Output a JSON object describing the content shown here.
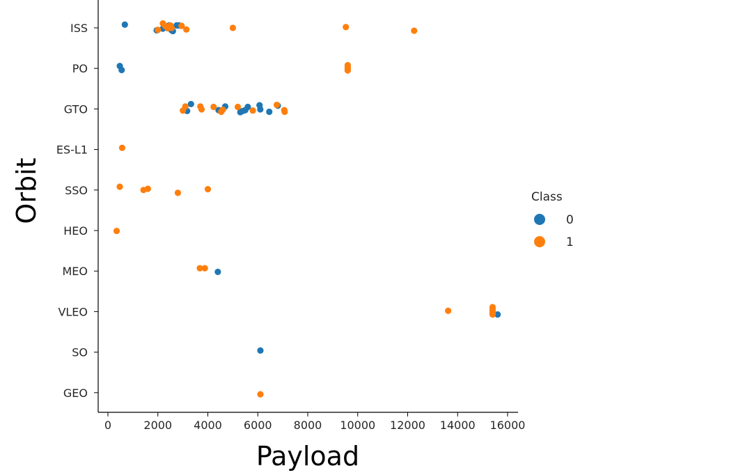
{
  "chart_data": {
    "type": "scatter",
    "title": "",
    "xlabel": "Payload",
    "ylabel": "Orbit",
    "xlim": [
      -400,
      16400
    ],
    "xticks": [
      0,
      2000,
      4000,
      6000,
      8000,
      10000,
      12000,
      14000,
      16000
    ],
    "categories": [
      "ISS",
      "PO",
      "GTO",
      "ES-L1",
      "SSO",
      "HEO",
      "MEO",
      "VLEO",
      "SO",
      "GEO"
    ],
    "grid": false,
    "legend": {
      "title": "Class",
      "placement": "right"
    },
    "series": [
      {
        "name": "0",
        "color": "#1f77b4",
        "points": [
          {
            "x": 677,
            "y": "ISS",
            "jitter": -0.08
          },
          {
            "x": 1952,
            "y": "ISS",
            "jitter": 0.06
          },
          {
            "x": 2200,
            "y": "ISS",
            "jitter": 0.02
          },
          {
            "x": 2450,
            "y": "ISS",
            "jitter": -0.06
          },
          {
            "x": 2600,
            "y": "ISS",
            "jitter": 0.08
          },
          {
            "x": 2750,
            "y": "ISS",
            "jitter": -0.06
          },
          {
            "x": 2850,
            "y": "ISS",
            "jitter": -0.06
          },
          {
            "x": 2550,
            "y": "ISS",
            "jitter": 0.06
          },
          {
            "x": 475,
            "y": "PO",
            "jitter": -0.06
          },
          {
            "x": 550,
            "y": "PO",
            "jitter": 0.04
          },
          {
            "x": 3170,
            "y": "GTO",
            "jitter": 0.05
          },
          {
            "x": 3325,
            "y": "GTO",
            "jitter": -0.12
          },
          {
            "x": 4430,
            "y": "GTO",
            "jitter": 0.03
          },
          {
            "x": 4696,
            "y": "GTO",
            "jitter": -0.06
          },
          {
            "x": 5300,
            "y": "GTO",
            "jitter": 0.08
          },
          {
            "x": 5400,
            "y": "GTO",
            "jitter": 0.05
          },
          {
            "x": 5500,
            "y": "GTO",
            "jitter": 0.03
          },
          {
            "x": 5600,
            "y": "GTO",
            "jitter": -0.05
          },
          {
            "x": 6070,
            "y": "GTO",
            "jitter": -0.09
          },
          {
            "x": 6100,
            "y": "GTO",
            "jitter": 0.01
          },
          {
            "x": 6460,
            "y": "GTO",
            "jitter": 0.07
          },
          {
            "x": 6800,
            "y": "GTO",
            "jitter": -0.08
          },
          {
            "x": 4400,
            "y": "MEO",
            "jitter": 0.02
          },
          {
            "x": 15600,
            "y": "VLEO",
            "jitter": 0.07
          },
          {
            "x": 6104,
            "y": "SO",
            "jitter": -0.04
          }
        ]
      },
      {
        "name": "1",
        "color": "#ff7f0e",
        "points": [
          {
            "x": 2000,
            "y": "ISS",
            "jitter": 0.05
          },
          {
            "x": 2200,
            "y": "ISS",
            "jitter": -0.11
          },
          {
            "x": 2300,
            "y": "ISS",
            "jitter": -0.04
          },
          {
            "x": 2400,
            "y": "ISS",
            "jitter": 0.01
          },
          {
            "x": 2500,
            "y": "ISS",
            "jitter": -0.06
          },
          {
            "x": 2550,
            "y": "ISS",
            "jitter": 0.0
          },
          {
            "x": 2950,
            "y": "ISS",
            "jitter": -0.05
          },
          {
            "x": 3140,
            "y": "ISS",
            "jitter": 0.04
          },
          {
            "x": 5000,
            "y": "ISS",
            "jitter": 0.0
          },
          {
            "x": 9525,
            "y": "ISS",
            "jitter": -0.02
          },
          {
            "x": 12259,
            "y": "ISS",
            "jitter": 0.07
          },
          {
            "x": 9600,
            "y": "PO",
            "jitter": -0.08
          },
          {
            "x": 9600,
            "y": "PO",
            "jitter": -0.03
          },
          {
            "x": 9600,
            "y": "PO",
            "jitter": 0.0
          },
          {
            "x": 9600,
            "y": "PO",
            "jitter": 0.05
          },
          {
            "x": 3000,
            "y": "GTO",
            "jitter": 0.04
          },
          {
            "x": 3100,
            "y": "GTO",
            "jitter": -0.06
          },
          {
            "x": 3700,
            "y": "GTO",
            "jitter": -0.06
          },
          {
            "x": 3750,
            "y": "GTO",
            "jitter": 0.01
          },
          {
            "x": 4230,
            "y": "GTO",
            "jitter": -0.05
          },
          {
            "x": 4535,
            "y": "GTO",
            "jitter": 0.07
          },
          {
            "x": 4600,
            "y": "GTO",
            "jitter": 0.02
          },
          {
            "x": 5200,
            "y": "GTO",
            "jitter": -0.05
          },
          {
            "x": 5800,
            "y": "GTO",
            "jitter": 0.04
          },
          {
            "x": 6761,
            "y": "GTO",
            "jitter": -0.1
          },
          {
            "x": 7060,
            "y": "GTO",
            "jitter": 0.03
          },
          {
            "x": 7076,
            "y": "GTO",
            "jitter": 0.07
          },
          {
            "x": 570,
            "y": "ES-L1",
            "jitter": -0.04
          },
          {
            "x": 475,
            "y": "SSO",
            "jitter": -0.08
          },
          {
            "x": 1425,
            "y": "SSO",
            "jitter": 0.0
          },
          {
            "x": 1600,
            "y": "SSO",
            "jitter": -0.03
          },
          {
            "x": 2800,
            "y": "SSO",
            "jitter": 0.07
          },
          {
            "x": 4000,
            "y": "SSO",
            "jitter": -0.02
          },
          {
            "x": 350,
            "y": "HEO",
            "jitter": 0.01
          },
          {
            "x": 3681,
            "y": "MEO",
            "jitter": -0.07
          },
          {
            "x": 3880,
            "y": "MEO",
            "jitter": -0.07
          },
          {
            "x": 13620,
            "y": "VLEO",
            "jitter": -0.02
          },
          {
            "x": 15400,
            "y": "VLEO",
            "jitter": -0.11
          },
          {
            "x": 15400,
            "y": "VLEO",
            "jitter": -0.06
          },
          {
            "x": 15400,
            "y": "VLEO",
            "jitter": -0.02
          },
          {
            "x": 15400,
            "y": "VLEO",
            "jitter": 0.03
          },
          {
            "x": 15400,
            "y": "VLEO",
            "jitter": 0.07
          },
          {
            "x": 6104,
            "y": "GEO",
            "jitter": 0.04
          }
        ]
      }
    ]
  }
}
